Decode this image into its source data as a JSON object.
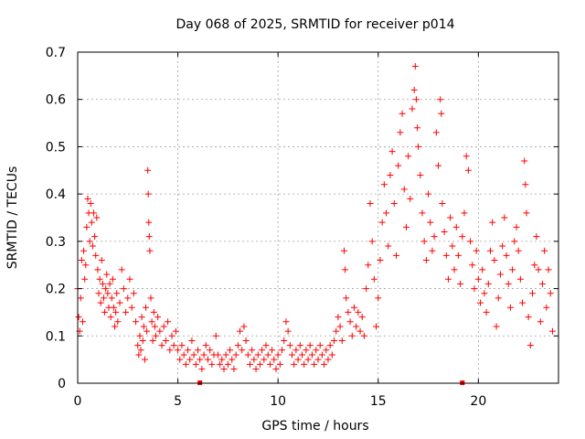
{
  "chart_data": {
    "type": "scatter",
    "title": "Day 068 of 2025, SRMTID for receiver p014",
    "xlabel": "GPS time / hours",
    "ylabel": "SRMTID / TECUs",
    "xlim": [
      0,
      24
    ],
    "ylim": [
      0,
      0.7
    ],
    "xticks": [
      "0",
      "5",
      "10",
      "15",
      "20"
    ],
    "yticks": [
      "0",
      "0.1",
      "0.2",
      "0.3",
      "0.4",
      "0.5",
      "0.6",
      "0.7"
    ],
    "grid": true,
    "marker": "plus",
    "color": "#ff0000",
    "series": [
      {
        "name": "SRMTID",
        "points": [
          [
            0.0,
            0.2
          ],
          [
            0.05,
            0.14
          ],
          [
            0.1,
            0.11
          ],
          [
            0.15,
            0.18
          ],
          [
            0.2,
            0.26
          ],
          [
            0.25,
            0.13
          ],
          [
            0.3,
            0.28
          ],
          [
            0.35,
            0.22
          ],
          [
            0.4,
            0.25
          ],
          [
            0.45,
            0.33
          ],
          [
            0.5,
            0.39
          ],
          [
            0.55,
            0.36
          ],
          [
            0.6,
            0.3
          ],
          [
            0.65,
            0.38
          ],
          [
            0.7,
            0.34
          ],
          [
            0.75,
            0.29
          ],
          [
            0.8,
            0.36
          ],
          [
            0.85,
            0.31
          ],
          [
            0.9,
            0.27
          ],
          [
            0.95,
            0.35
          ],
          [
            1.0,
            0.24
          ],
          [
            1.05,
            0.19
          ],
          [
            1.1,
            0.22
          ],
          [
            1.15,
            0.17
          ],
          [
            1.2,
            0.26
          ],
          [
            1.25,
            0.21
          ],
          [
            1.3,
            0.18
          ],
          [
            1.35,
            0.15
          ],
          [
            1.4,
            0.2
          ],
          [
            1.45,
            0.23
          ],
          [
            1.5,
            0.19
          ],
          [
            1.55,
            0.16
          ],
          [
            1.6,
            0.21
          ],
          [
            1.65,
            0.14
          ],
          [
            1.7,
            0.18
          ],
          [
            1.75,
            0.22
          ],
          [
            1.8,
            0.16
          ],
          [
            1.85,
            0.12
          ],
          [
            1.9,
            0.15
          ],
          [
            1.95,
            0.19
          ],
          [
            2.0,
            0.13
          ],
          [
            2.1,
            0.17
          ],
          [
            2.2,
            0.24
          ],
          [
            2.3,
            0.2
          ],
          [
            2.4,
            0.15
          ],
          [
            2.5,
            0.18
          ],
          [
            2.6,
            0.22
          ],
          [
            2.7,
            0.16
          ],
          [
            2.8,
            0.19
          ],
          [
            2.9,
            0.13
          ],
          [
            3.0,
            0.08
          ],
          [
            3.05,
            0.06
          ],
          [
            3.1,
            0.1
          ],
          [
            3.15,
            0.07
          ],
          [
            3.2,
            0.14
          ],
          [
            3.25,
            0.09
          ],
          [
            3.3,
            0.12
          ],
          [
            3.35,
            0.05
          ],
          [
            3.4,
            0.16
          ],
          [
            3.45,
            0.11
          ],
          [
            3.5,
            0.45
          ],
          [
            3.52,
            0.4
          ],
          [
            3.55,
            0.34
          ],
          [
            3.57,
            0.31
          ],
          [
            3.6,
            0.28
          ],
          [
            3.65,
            0.18
          ],
          [
            3.7,
            0.13
          ],
          [
            3.75,
            0.09
          ],
          [
            3.8,
            0.15
          ],
          [
            3.85,
            0.12
          ],
          [
            3.9,
            0.1
          ],
          [
            4.0,
            0.14
          ],
          [
            4.1,
            0.11
          ],
          [
            4.2,
            0.08
          ],
          [
            4.3,
            0.12
          ],
          [
            4.4,
            0.09
          ],
          [
            4.5,
            0.13
          ],
          [
            4.6,
            0.07
          ],
          [
            4.7,
            0.1
          ],
          [
            4.8,
            0.08
          ],
          [
            4.9,
            0.11
          ],
          [
            5.0,
            0.07
          ],
          [
            5.1,
            0.05
          ],
          [
            5.2,
            0.08
          ],
          [
            5.3,
            0.06
          ],
          [
            5.4,
            0.04
          ],
          [
            5.5,
            0.07
          ],
          [
            5.6,
            0.05
          ],
          [
            5.7,
            0.09
          ],
          [
            5.8,
            0.06
          ],
          [
            5.9,
            0.04
          ],
          [
            6.0,
            0.07
          ],
          [
            6.1,
            0.05
          ],
          [
            6.2,
            0.03
          ],
          [
            6.3,
            0.06
          ],
          [
            6.4,
            0.08
          ],
          [
            6.5,
            0.05
          ],
          [
            6.6,
            0.07
          ],
          [
            6.7,
            0.04
          ],
          [
            6.8,
            0.06
          ],
          [
            6.9,
            0.1
          ],
          [
            7.0,
            0.06
          ],
          [
            7.1,
            0.04
          ],
          [
            7.2,
            0.05
          ],
          [
            7.3,
            0.03
          ],
          [
            7.4,
            0.06
          ],
          [
            7.5,
            0.04
          ],
          [
            7.6,
            0.07
          ],
          [
            7.7,
            0.05
          ],
          [
            7.8,
            0.03
          ],
          [
            7.9,
            0.06
          ],
          [
            8.0,
            0.08
          ],
          [
            8.1,
            0.11
          ],
          [
            8.2,
            0.07
          ],
          [
            8.3,
            0.12
          ],
          [
            8.4,
            0.09
          ],
          [
            8.5,
            0.06
          ],
          [
            8.6,
            0.04
          ],
          [
            8.7,
            0.07
          ],
          [
            8.8,
            0.05
          ],
          [
            8.9,
            0.03
          ],
          [
            9.0,
            0.06
          ],
          [
            9.1,
            0.04
          ],
          [
            9.2,
            0.07
          ],
          [
            9.3,
            0.05
          ],
          [
            9.4,
            0.08
          ],
          [
            9.5,
            0.06
          ],
          [
            9.6,
            0.04
          ],
          [
            9.7,
            0.07
          ],
          [
            9.8,
            0.05
          ],
          [
            9.9,
            0.03
          ],
          [
            10.0,
            0.06
          ],
          [
            10.1,
            0.04
          ],
          [
            10.2,
            0.07
          ],
          [
            10.3,
            0.09
          ],
          [
            10.4,
            0.13
          ],
          [
            10.5,
            0.11
          ],
          [
            10.6,
            0.08
          ],
          [
            10.7,
            0.06
          ],
          [
            10.8,
            0.04
          ],
          [
            10.9,
            0.07
          ],
          [
            11.0,
            0.05
          ],
          [
            11.1,
            0.08
          ],
          [
            11.2,
            0.06
          ],
          [
            11.3,
            0.04
          ],
          [
            11.4,
            0.07
          ],
          [
            11.5,
            0.05
          ],
          [
            11.6,
            0.08
          ],
          [
            11.7,
            0.06
          ],
          [
            11.8,
            0.04
          ],
          [
            11.9,
            0.07
          ],
          [
            12.0,
            0.05
          ],
          [
            12.1,
            0.08
          ],
          [
            12.2,
            0.06
          ],
          [
            12.3,
            0.04
          ],
          [
            12.4,
            0.07
          ],
          [
            12.5,
            0.05
          ],
          [
            12.6,
            0.08
          ],
          [
            12.7,
            0.06
          ],
          [
            12.8,
            0.09
          ],
          [
            12.9,
            0.11
          ],
          [
            13.0,
            0.14
          ],
          [
            13.1,
            0.12
          ],
          [
            13.2,
            0.09
          ],
          [
            13.3,
            0.28
          ],
          [
            13.35,
            0.24
          ],
          [
            13.4,
            0.18
          ],
          [
            13.5,
            0.15
          ],
          [
            13.6,
            0.13
          ],
          [
            13.7,
            0.1
          ],
          [
            13.8,
            0.16
          ],
          [
            13.9,
            0.12
          ],
          [
            14.0,
            0.15
          ],
          [
            14.1,
            0.11
          ],
          [
            14.2,
            0.14
          ],
          [
            14.3,
            0.1
          ],
          [
            14.4,
            0.2
          ],
          [
            14.5,
            0.25
          ],
          [
            14.6,
            0.38
          ],
          [
            14.7,
            0.3
          ],
          [
            14.8,
            0.22
          ],
          [
            14.9,
            0.12
          ],
          [
            15.0,
            0.18
          ],
          [
            15.1,
            0.26
          ],
          [
            15.2,
            0.34
          ],
          [
            15.3,
            0.42
          ],
          [
            15.4,
            0.36
          ],
          [
            15.5,
            0.29
          ],
          [
            15.6,
            0.44
          ],
          [
            15.7,
            0.49
          ],
          [
            15.8,
            0.38
          ],
          [
            15.9,
            0.27
          ],
          [
            16.0,
            0.46
          ],
          [
            16.1,
            0.53
          ],
          [
            16.2,
            0.57
          ],
          [
            16.3,
            0.41
          ],
          [
            16.4,
            0.33
          ],
          [
            16.5,
            0.48
          ],
          [
            16.6,
            0.39
          ],
          [
            16.7,
            0.58
          ],
          [
            16.8,
            0.62
          ],
          [
            16.85,
            0.67
          ],
          [
            16.9,
            0.6
          ],
          [
            16.95,
            0.54
          ],
          [
            17.0,
            0.5
          ],
          [
            17.1,
            0.44
          ],
          [
            17.2,
            0.36
          ],
          [
            17.3,
            0.3
          ],
          [
            17.4,
            0.26
          ],
          [
            17.5,
            0.4
          ],
          [
            17.6,
            0.34
          ],
          [
            17.7,
            0.28
          ],
          [
            17.8,
            0.31
          ],
          [
            17.9,
            0.53
          ],
          [
            18.0,
            0.46
          ],
          [
            18.1,
            0.6
          ],
          [
            18.15,
            0.57
          ],
          [
            18.2,
            0.38
          ],
          [
            18.3,
            0.32
          ],
          [
            18.4,
            0.27
          ],
          [
            18.5,
            0.22
          ],
          [
            18.6,
            0.35
          ],
          [
            18.7,
            0.29
          ],
          [
            18.8,
            0.24
          ],
          [
            18.9,
            0.33
          ],
          [
            19.0,
            0.27
          ],
          [
            19.1,
            0.21
          ],
          [
            19.2,
            0.31
          ],
          [
            19.3,
            0.36
          ],
          [
            19.4,
            0.48
          ],
          [
            19.5,
            0.45
          ],
          [
            19.6,
            0.3
          ],
          [
            19.7,
            0.25
          ],
          [
            19.8,
            0.2
          ],
          [
            19.9,
            0.28
          ],
          [
            20.0,
            0.22
          ],
          [
            20.1,
            0.17
          ],
          [
            20.2,
            0.24
          ],
          [
            20.3,
            0.19
          ],
          [
            20.4,
            0.15
          ],
          [
            20.5,
            0.21
          ],
          [
            20.6,
            0.28
          ],
          [
            20.7,
            0.34
          ],
          [
            20.8,
            0.26
          ],
          [
            20.9,
            0.12
          ],
          [
            21.0,
            0.18
          ],
          [
            21.1,
            0.23
          ],
          [
            21.2,
            0.29
          ],
          [
            21.3,
            0.35
          ],
          [
            21.4,
            0.27
          ],
          [
            21.5,
            0.21
          ],
          [
            21.6,
            0.16
          ],
          [
            21.7,
            0.24
          ],
          [
            21.8,
            0.3
          ],
          [
            21.9,
            0.33
          ],
          [
            22.0,
            0.28
          ],
          [
            22.1,
            0.22
          ],
          [
            22.2,
            0.17
          ],
          [
            22.3,
            0.47
          ],
          [
            22.35,
            0.42
          ],
          [
            22.4,
            0.36
          ],
          [
            22.5,
            0.14
          ],
          [
            22.6,
            0.08
          ],
          [
            22.7,
            0.19
          ],
          [
            22.8,
            0.25
          ],
          [
            22.9,
            0.31
          ],
          [
            23.0,
            0.24
          ],
          [
            23.1,
            0.13
          ],
          [
            23.2,
            0.21
          ],
          [
            23.3,
            0.28
          ],
          [
            23.4,
            0.16
          ],
          [
            23.5,
            0.24
          ],
          [
            23.6,
            0.19
          ],
          [
            23.7,
            0.11
          ]
        ]
      }
    ],
    "zero_markers": [
      6.1,
      19.2
    ]
  }
}
